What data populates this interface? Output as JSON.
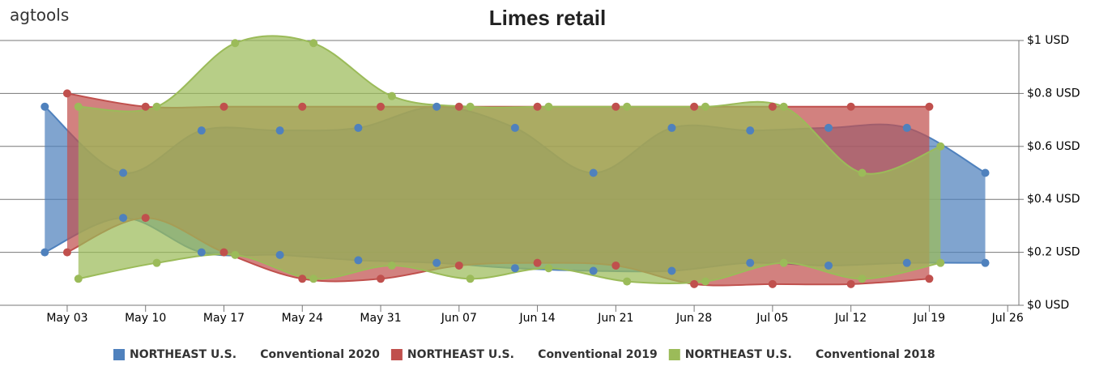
{
  "logo": "agtools",
  "chart_data": {
    "type": "arearange",
    "title": "Limes retail",
    "xlim": [
      "Apr 27",
      "Jul 27"
    ],
    "xticks": [
      "May 03",
      "May 10",
      "May 17",
      "May 24",
      "May 31",
      "Jun 07",
      "Jun 14",
      "Jun 21",
      "Jun 28",
      "Jul 05",
      "Jul 12",
      "Jul 19",
      "Jul 26"
    ],
    "ylim": [
      0,
      1
    ],
    "yticks": [
      {
        "value": 0,
        "label": "$0 USD"
      },
      {
        "value": 0.2,
        "label": "$0.2 USD"
      },
      {
        "value": 0.4,
        "label": "$0.4 USD"
      },
      {
        "value": 0.6,
        "label": "$0.6 USD"
      },
      {
        "value": 0.8,
        "label": "$0.8 USD"
      },
      {
        "value": 1,
        "label": "$1 USD"
      }
    ],
    "grid": true,
    "legend": "bottom",
    "series": [
      {
        "name": "NORTHEAST U.S.      Conventional 2020",
        "color": "#4f81bd",
        "x": [
          "May 01",
          "May 08",
          "May 15",
          "May 22",
          "May 29",
          "Jun 05",
          "Jun 12",
          "Jun 19",
          "Jun 26",
          "Jul 03",
          "Jul 10",
          "Jul 17",
          "Jul 24"
        ],
        "low": [
          0.2,
          0.33,
          0.2,
          0.19,
          0.17,
          0.16,
          0.14,
          0.13,
          0.13,
          0.16,
          0.15,
          0.16,
          0.16
        ],
        "high": [
          0.75,
          0.5,
          0.66,
          0.66,
          0.67,
          0.75,
          0.67,
          0.5,
          0.67,
          0.66,
          0.67,
          0.67,
          0.5
        ]
      },
      {
        "name": "NORTHEAST U.S.      Conventional 2019",
        "color": "#c0504d",
        "x": [
          "May 03",
          "May 10",
          "May 17",
          "May 24",
          "May 31",
          "Jun 07",
          "Jun 14",
          "Jun 21",
          "Jun 28",
          "Jul 05",
          "Jul 12",
          "Jul 19"
        ],
        "low": [
          0.2,
          0.33,
          0.2,
          0.1,
          0.1,
          0.15,
          0.16,
          0.15,
          0.08,
          0.08,
          0.08,
          0.1
        ],
        "high": [
          0.8,
          0.75,
          0.75,
          0.75,
          0.75,
          0.75,
          0.75,
          0.75,
          0.75,
          0.75,
          0.75,
          0.75
        ]
      },
      {
        "name": "NORTHEAST U.S.      Conventional 2018",
        "color": "#9bbb59",
        "x": [
          "May 04",
          "May 11",
          "May 18",
          "May 25",
          "Jun 01",
          "Jun 08",
          "Jun 15",
          "Jun 22",
          "Jun 29",
          "Jul 06",
          "Jul 13",
          "Jul 20"
        ],
        "low": [
          0.1,
          0.16,
          0.19,
          0.1,
          0.15,
          0.1,
          0.14,
          0.09,
          0.09,
          0.16,
          0.1,
          0.16
        ],
        "high": [
          0.75,
          0.75,
          0.99,
          0.99,
          0.79,
          0.75,
          0.75,
          0.75,
          0.75,
          0.75,
          0.5,
          0.6
        ]
      }
    ]
  }
}
